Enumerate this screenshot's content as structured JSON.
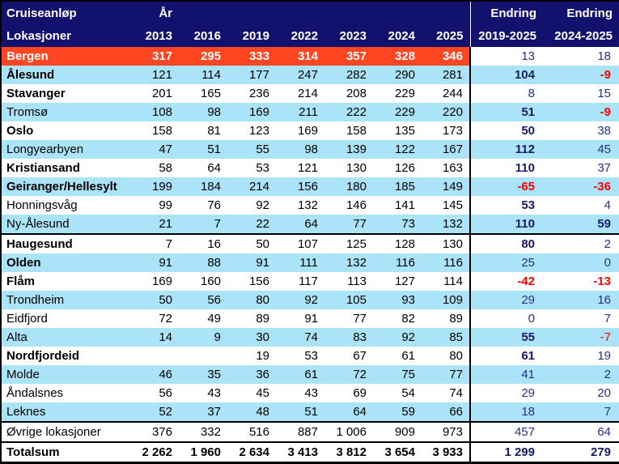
{
  "header": {
    "title_line1": "Cruiseanløp",
    "title_line2": "Lokasjoner",
    "year_label": "År",
    "years": [
      "2013",
      "2016",
      "2019",
      "2022",
      "2023",
      "2024",
      "2025"
    ],
    "change1_label": "Endring",
    "change1_range": "2019-2025",
    "change2_label": "Endring",
    "change2_range": "2024-2025"
  },
  "colors": {
    "header_bg": "#12126E",
    "header_text": "#FFFFFF",
    "highlight_row_bg": "#FF4521",
    "alt_row_bg": "#ABE3F8",
    "year_value_text": "#000000",
    "change_text": "#263087",
    "change_text_bold": "#181C63",
    "negative_change_text": "#FF0000"
  },
  "chart_data": {
    "type": "table",
    "columns": [
      "Lokasjoner",
      "2013",
      "2016",
      "2019",
      "2022",
      "2023",
      "2024",
      "2025",
      "Endring 2019-2025",
      "Endring 2024-2025"
    ],
    "rows": [
      {
        "name": "Bergen",
        "bg": "highlight",
        "name_bold": true,
        "values_bold": true,
        "sep_top": false,
        "values": [
          "317",
          "295",
          "333",
          "314",
          "357",
          "328",
          "346"
        ],
        "e1": "13",
        "e1_style": "plain",
        "e2": "18",
        "e2_style": "plain"
      },
      {
        "name": "Ålesund",
        "bg": "alt",
        "name_bold": true,
        "values_bold": false,
        "sep_top": false,
        "values": [
          "121",
          "114",
          "177",
          "247",
          "282",
          "290",
          "281"
        ],
        "e1": "104",
        "e1_style": "bold",
        "e2": "-9",
        "e2_style": "negbold"
      },
      {
        "name": "Stavanger",
        "bg": "white",
        "name_bold": true,
        "values_bold": false,
        "sep_top": false,
        "values": [
          "201",
          "165",
          "236",
          "214",
          "208",
          "229",
          "244"
        ],
        "e1": "8",
        "e1_style": "plain",
        "e2": "15",
        "e2_style": "plain"
      },
      {
        "name": "Tromsø",
        "bg": "alt",
        "name_bold": false,
        "values_bold": false,
        "sep_top": false,
        "values": [
          "108",
          "98",
          "169",
          "211",
          "222",
          "229",
          "220"
        ],
        "e1": "51",
        "e1_style": "bold",
        "e2": "-9",
        "e2_style": "negbold"
      },
      {
        "name": "Oslo",
        "bg": "white",
        "name_bold": true,
        "values_bold": false,
        "sep_top": false,
        "values": [
          "158",
          "81",
          "123",
          "169",
          "158",
          "135",
          "173"
        ],
        "e1": "50",
        "e1_style": "bold",
        "e2": "38",
        "e2_style": "plain"
      },
      {
        "name": "Longyearbyen",
        "bg": "alt",
        "name_bold": false,
        "values_bold": false,
        "sep_top": false,
        "values": [
          "47",
          "51",
          "55",
          "98",
          "139",
          "122",
          "167"
        ],
        "e1": "112",
        "e1_style": "bold",
        "e2": "45",
        "e2_style": "plain"
      },
      {
        "name": "Kristiansand",
        "bg": "white",
        "name_bold": true,
        "values_bold": false,
        "sep_top": false,
        "values": [
          "58",
          "64",
          "53",
          "121",
          "130",
          "126",
          "163"
        ],
        "e1": "110",
        "e1_style": "bold",
        "e2": "37",
        "e2_style": "plain"
      },
      {
        "name": "Geiranger/Hellesylt",
        "bg": "alt",
        "name_bold": true,
        "values_bold": false,
        "sep_top": false,
        "values": [
          "199",
          "184",
          "214",
          "156",
          "180",
          "185",
          "149"
        ],
        "e1": "-65",
        "e1_style": "negbold",
        "e2": "-36",
        "e2_style": "negbold"
      },
      {
        "name": "Honningsvåg",
        "bg": "white",
        "name_bold": false,
        "values_bold": false,
        "sep_top": false,
        "values": [
          "99",
          "76",
          "92",
          "132",
          "146",
          "141",
          "145"
        ],
        "e1": "53",
        "e1_style": "bold",
        "e2": "4",
        "e2_style": "plain"
      },
      {
        "name": "Ny-Ålesund",
        "bg": "alt",
        "name_bold": false,
        "values_bold": false,
        "sep_top": false,
        "values": [
          "21",
          "7",
          "22",
          "64",
          "77",
          "73",
          "132"
        ],
        "e1": "110",
        "e1_style": "bold",
        "e2": "59",
        "e2_style": "bold"
      },
      {
        "name": "Haugesund",
        "bg": "white",
        "name_bold": true,
        "values_bold": false,
        "sep_top": true,
        "values": [
          "7",
          "16",
          "50",
          "107",
          "125",
          "128",
          "130"
        ],
        "e1": "80",
        "e1_style": "bold",
        "e2": "2",
        "e2_style": "plain"
      },
      {
        "name": "Olden",
        "bg": "alt",
        "name_bold": true,
        "values_bold": false,
        "sep_top": false,
        "values": [
          "91",
          "88",
          "91",
          "111",
          "132",
          "116",
          "116"
        ],
        "e1": "25",
        "e1_style": "plain",
        "e2": "0",
        "e2_style": "plain"
      },
      {
        "name": "Flåm",
        "bg": "white",
        "name_bold": true,
        "values_bold": false,
        "sep_top": false,
        "values": [
          "169",
          "160",
          "156",
          "117",
          "113",
          "127",
          "114"
        ],
        "e1": "-42",
        "e1_style": "negbold",
        "e2": "-13",
        "e2_style": "negbold"
      },
      {
        "name": "Trondheim",
        "bg": "alt",
        "name_bold": false,
        "values_bold": false,
        "sep_top": false,
        "values": [
          "50",
          "56",
          "80",
          "92",
          "105",
          "93",
          "109"
        ],
        "e1": "29",
        "e1_style": "plain",
        "e2": "16",
        "e2_style": "plain"
      },
      {
        "name": "Eidfjord",
        "bg": "white",
        "name_bold": false,
        "values_bold": false,
        "sep_top": false,
        "values": [
          "72",
          "49",
          "89",
          "91",
          "77",
          "82",
          "89"
        ],
        "e1": "0",
        "e1_style": "plain",
        "e2": "7",
        "e2_style": "plain"
      },
      {
        "name": "Alta",
        "bg": "alt",
        "name_bold": false,
        "values_bold": false,
        "sep_top": false,
        "values": [
          "14",
          "9",
          "30",
          "74",
          "83",
          "92",
          "85"
        ],
        "e1": "55",
        "e1_style": "bold",
        "e2": "-7",
        "e2_style": "neg"
      },
      {
        "name": "Nordfjordeid",
        "bg": "white",
        "name_bold": true,
        "values_bold": false,
        "sep_top": false,
        "values": [
          "",
          "",
          "19",
          "53",
          "67",
          "61",
          "80"
        ],
        "e1": "61",
        "e1_style": "bold",
        "e2": "19",
        "e2_style": "plain"
      },
      {
        "name": "Molde",
        "bg": "alt",
        "name_bold": false,
        "values_bold": false,
        "sep_top": false,
        "values": [
          "46",
          "35",
          "36",
          "61",
          "72",
          "75",
          "77"
        ],
        "e1": "41",
        "e1_style": "plain",
        "e2": "2",
        "e2_style": "plain"
      },
      {
        "name": "Åndalsnes",
        "bg": "white",
        "name_bold": false,
        "values_bold": false,
        "sep_top": false,
        "values": [
          "56",
          "43",
          "45",
          "43",
          "69",
          "54",
          "74"
        ],
        "e1": "29",
        "e1_style": "plain",
        "e2": "20",
        "e2_style": "plain"
      },
      {
        "name": "Leknes",
        "bg": "alt",
        "name_bold": false,
        "values_bold": false,
        "sep_top": false,
        "values": [
          "52",
          "37",
          "48",
          "51",
          "64",
          "59",
          "66"
        ],
        "e1": "18",
        "e1_style": "plain",
        "e2": "7",
        "e2_style": "plain"
      },
      {
        "name": "Øvrige lokasjoner",
        "bg": "white",
        "name_bold": false,
        "values_bold": false,
        "sep_top": true,
        "values": [
          "376",
          "332",
          "516",
          "887",
          "1 006",
          "909",
          "973"
        ],
        "e1": "457",
        "e1_style": "plain",
        "e2": "64",
        "e2_style": "plain"
      },
      {
        "name": "Totalsum",
        "bg": "white",
        "name_bold": true,
        "values_bold": true,
        "sep_top": true,
        "values": [
          "2 262",
          "1 960",
          "2 634",
          "3 413",
          "3 812",
          "3 654",
          "3 933"
        ],
        "e1": "1 299",
        "e1_style": "bold",
        "e2": "279",
        "e2_style": "bold"
      }
    ]
  }
}
